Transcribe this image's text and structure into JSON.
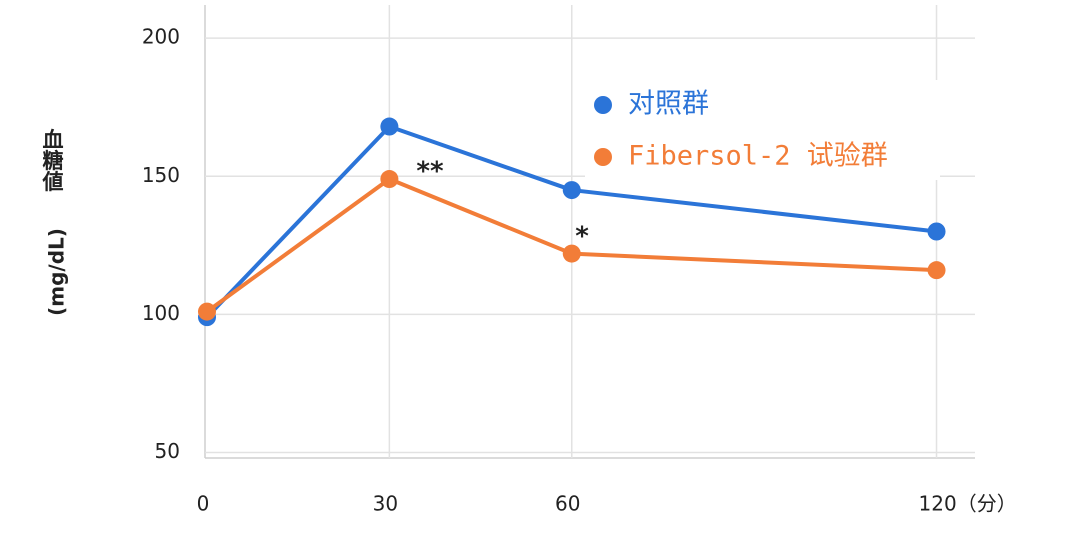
{
  "chart_data": {
    "type": "line",
    "y_label": "血糖値",
    "y_unit": "(mg/dL)",
    "x": [
      0,
      30,
      60,
      120
    ],
    "series": [
      {
        "name": "对照群",
        "color": "#2b74d8",
        "values": [
          99,
          168,
          145,
          130
        ]
      },
      {
        "name": "Fibersol-2 试验群",
        "color": "#f27d38",
        "values": [
          101,
          149,
          122,
          116
        ]
      }
    ],
    "annotations": [
      {
        "text": "**"
      },
      {
        "text": "*"
      }
    ],
    "xlim": [
      0,
      126
    ],
    "xticks": [
      0,
      30,
      60,
      {
        "value": 120,
        "label": "120（分）"
      }
    ],
    "ylim": [
      48,
      212
    ],
    "yticks": [
      50,
      100,
      150,
      200
    ],
    "grid": true,
    "legend": "upper-right"
  }
}
